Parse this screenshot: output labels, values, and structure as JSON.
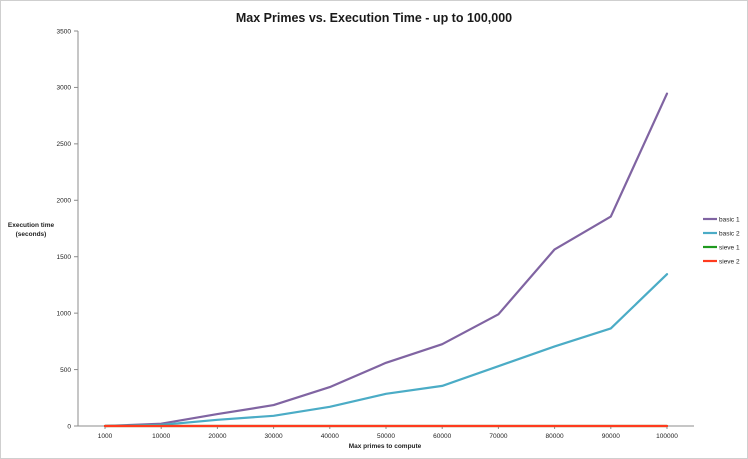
{
  "chart_data": {
    "type": "line",
    "title": "Max Primes vs. Execution Time - up to 100,000",
    "xlabel": "Max primes to compute",
    "ylabel_line1": "Execution time",
    "ylabel_line2": "(seconds)",
    "categories": [
      "1000",
      "10000",
      "20000",
      "30000",
      "40000",
      "50000",
      "60000",
      "70000",
      "80000",
      "90000",
      "100000"
    ],
    "yticks": [
      "0",
      "500",
      "1000",
      "1500",
      "2000",
      "2500",
      "3000",
      "3500"
    ],
    "ylim": [
      0,
      3500
    ],
    "grid": false,
    "legend_position": "right",
    "series": [
      {
        "name": "basic 1",
        "color": "#8064a2",
        "values": [
          0,
          20,
          105,
          185,
          345,
          560,
          725,
          990,
          1565,
          1855,
          2945
        ]
      },
      {
        "name": "basic 2",
        "color": "#4bacc6",
        "values": [
          0,
          10,
          55,
          90,
          170,
          285,
          355,
          530,
          705,
          865,
          1345
        ]
      },
      {
        "name": "sieve 1",
        "color": "#1f9a1f",
        "values": [
          0,
          0,
          0,
          0,
          0,
          0,
          0,
          0,
          0,
          0,
          0
        ]
      },
      {
        "name": "sieve 2",
        "color": "#ff3b1f",
        "values": [
          0,
          0,
          0,
          0,
          0,
          0,
          0,
          0,
          0,
          0,
          0
        ]
      }
    ]
  }
}
